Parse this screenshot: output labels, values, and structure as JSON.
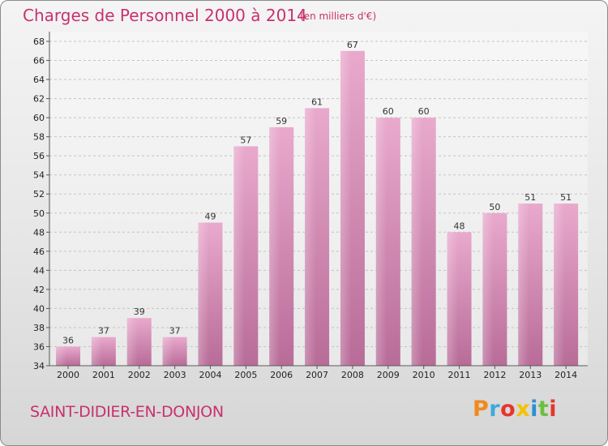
{
  "header": {
    "title": "Charges de Personnel 2000 à 2014",
    "subtitle": "(en milliers d'€)"
  },
  "footer": {
    "commune": "SAINT-DIDIER-EN-DONJON",
    "logo_text": "Proxiti",
    "logo_colors": [
      "#f08a1d",
      "#3fa9dc",
      "#e7352b",
      "#f5c200",
      "#2f8fd1",
      "#6cbf3f",
      "#e7352b"
    ]
  },
  "chart_data": {
    "type": "bar",
    "title": "Charges de Personnel 2000 à 2014",
    "subtitle": "(en milliers d'€)",
    "categories": [
      "2000",
      "2001",
      "2002",
      "2003",
      "2004",
      "2005",
      "2006",
      "2007",
      "2008",
      "2009",
      "2010",
      "2011",
      "2012",
      "2013",
      "2014"
    ],
    "values": [
      36,
      37,
      39,
      37,
      49,
      57,
      59,
      61,
      67,
      60,
      60,
      48,
      50,
      51,
      51
    ],
    "ylim": [
      34,
      68
    ],
    "yticks": [
      34,
      36,
      38,
      40,
      42,
      44,
      46,
      48,
      50,
      52,
      54,
      56,
      58,
      60,
      62,
      64,
      66,
      68
    ],
    "grid": true,
    "bar_color": "#d98ab5",
    "data_labels": true
  }
}
